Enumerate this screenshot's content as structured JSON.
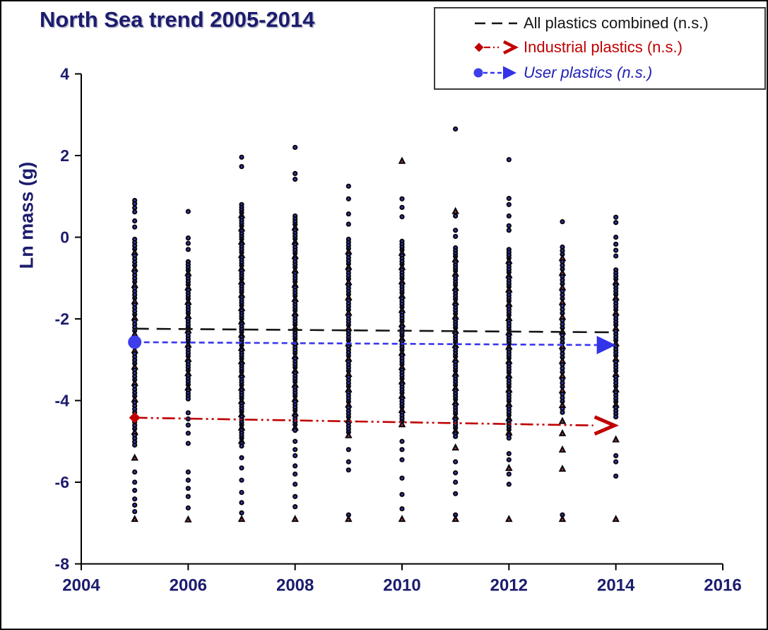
{
  "title": "North Sea trend 2005-2014",
  "legend": {
    "items": [
      {
        "series": "all",
        "label": "All plastics combined (n.s.)",
        "color": "#161616"
      },
      {
        "series": "industrial",
        "label": "Industrial plastics (n.s.)",
        "color": "#c00000"
      },
      {
        "series": "user",
        "label": "User plastics (n.s.)",
        "color": "#2222b4"
      }
    ]
  },
  "colors": {
    "navy_text": "#1c1c6e",
    "black_line": "#151515",
    "red_line": "#c00000",
    "blue_line": "#3636ee",
    "marker_body": "#10102c",
    "marker_blue_dot": "#4444e0",
    "marker_red_dot": "#dd3322"
  },
  "chart_data": {
    "type": "scatter",
    "title": "North Sea trend 2005-2014",
    "xlabel": "",
    "ylabel": "Ln mass (g)",
    "xlim": [
      2004,
      2016
    ],
    "ylim": [
      -8,
      4
    ],
    "x_ticks": [
      "2004",
      "2006",
      "2008",
      "2010",
      "2012",
      "2014",
      "2016"
    ],
    "y_ticks": [
      "4",
      "2",
      "0",
      "-2",
      "-4",
      "-6",
      "-8"
    ],
    "grid": false,
    "legend_position": "top-right",
    "marker_legend": {
      "circle": "user plastics sample (dark circle, blue core)",
      "triangle": "industrial plastics sample (dark triangle, red core)"
    },
    "columns": [
      {
        "year": 2005,
        "upper": [
          [
            0.9,
            "c"
          ],
          [
            0.82,
            "c"
          ],
          [
            0.72,
            "c"
          ],
          [
            0.62,
            "c"
          ],
          [
            0.4,
            "c"
          ],
          [
            0.25,
            "c"
          ]
        ],
        "dense": {
          "from": -0.05,
          "to": -5.05,
          "step": 0.08,
          "triangle_every": 5
        },
        "lower": [
          [
            -5.4,
            "t"
          ],
          [
            -5.75,
            "c"
          ],
          [
            -6.0,
            "c"
          ],
          [
            -6.2,
            "c"
          ],
          [
            -6.41,
            "c"
          ],
          [
            -6.56,
            "c"
          ],
          [
            -6.72,
            "c"
          ],
          [
            -6.9,
            "t"
          ]
        ]
      },
      {
        "year": 2006,
        "upper": [
          [
            0.63,
            "c"
          ],
          [
            -0.02,
            "c"
          ],
          [
            -0.15,
            "c"
          ],
          [
            -0.3,
            "c"
          ]
        ],
        "dense": {
          "from": -0.6,
          "to": -3.95,
          "step": 0.07,
          "triangle_every": 5
        },
        "lower": [
          [
            -4.3,
            "c"
          ],
          [
            -4.45,
            "c"
          ],
          [
            -4.6,
            "c"
          ],
          [
            -4.8,
            "c"
          ],
          [
            -5.05,
            "c"
          ],
          [
            -5.75,
            "c"
          ],
          [
            -5.95,
            "c"
          ],
          [
            -6.15,
            "c"
          ],
          [
            -6.35,
            "c"
          ],
          [
            -6.63,
            "c"
          ],
          [
            -6.91,
            "t"
          ]
        ]
      },
      {
        "year": 2007,
        "upper": [
          [
            1.96,
            "c"
          ],
          [
            1.73,
            "c"
          ]
        ],
        "dense": {
          "from": 0.8,
          "to": -5.1,
          "step": 0.065,
          "triangle_every": 5
        },
        "lower": [
          [
            -5.4,
            "c"
          ],
          [
            -5.65,
            "c"
          ],
          [
            -5.95,
            "c"
          ],
          [
            -6.25,
            "c"
          ],
          [
            -6.5,
            "c"
          ],
          [
            -6.75,
            "c"
          ],
          [
            -6.9,
            "t"
          ]
        ]
      },
      {
        "year": 2008,
        "upper": [
          [
            2.2,
            "c"
          ],
          [
            1.56,
            "c"
          ],
          [
            1.42,
            "c"
          ]
        ],
        "dense": {
          "from": 0.52,
          "to": -4.7,
          "step": 0.07,
          "triangle_every": 5
        },
        "lower": [
          [
            -5.0,
            "c"
          ],
          [
            -5.2,
            "c"
          ],
          [
            -5.35,
            "c"
          ],
          [
            -5.6,
            "c"
          ],
          [
            -5.8,
            "c"
          ],
          [
            -6.05,
            "c"
          ],
          [
            -6.35,
            "c"
          ],
          [
            -6.6,
            "c"
          ],
          [
            -6.9,
            "t"
          ]
        ]
      },
      {
        "year": 2009,
        "upper": [
          [
            1.25,
            "c"
          ],
          [
            0.94,
            "c"
          ],
          [
            0.57,
            "c"
          ],
          [
            0.32,
            "c"
          ]
        ],
        "dense": {
          "from": -0.05,
          "to": -4.85,
          "step": 0.075,
          "triangle_every": 5
        },
        "lower": [
          [
            -5.2,
            "c"
          ],
          [
            -5.5,
            "c"
          ],
          [
            -5.7,
            "c"
          ],
          [
            -6.8,
            "c"
          ],
          [
            -6.9,
            "t"
          ]
        ]
      },
      {
        "year": 2010,
        "upper": [
          [
            1.87,
            "t"
          ],
          [
            0.94,
            "c"
          ],
          [
            0.73,
            "c"
          ],
          [
            0.5,
            "c"
          ]
        ],
        "dense": {
          "from": -0.1,
          "to": -4.6,
          "step": 0.07,
          "triangle_every": 5
        },
        "lower": [
          [
            -5.0,
            "c"
          ],
          [
            -5.2,
            "c"
          ],
          [
            -5.45,
            "c"
          ],
          [
            -5.9,
            "c"
          ],
          [
            -6.3,
            "c"
          ],
          [
            -6.65,
            "c"
          ],
          [
            -6.9,
            "t"
          ]
        ]
      },
      {
        "year": 2011,
        "upper": [
          [
            2.65,
            "c"
          ],
          [
            0.64,
            "t"
          ],
          [
            0.52,
            "c"
          ],
          [
            0.17,
            "c"
          ],
          [
            0.02,
            "c"
          ]
        ],
        "dense": {
          "from": -0.26,
          "to": -4.87,
          "step": 0.07,
          "triangle_every": 5
        },
        "lower": [
          [
            -5.15,
            "t"
          ],
          [
            -5.5,
            "c"
          ],
          [
            -5.77,
            "c"
          ],
          [
            -6.0,
            "c"
          ],
          [
            -6.28,
            "c"
          ],
          [
            -6.8,
            "c"
          ],
          [
            -6.9,
            "t"
          ]
        ]
      },
      {
        "year": 2012,
        "upper": [
          [
            1.9,
            "c"
          ],
          [
            0.95,
            "c"
          ],
          [
            0.8,
            "c"
          ],
          [
            0.52,
            "c"
          ],
          [
            0.28,
            "c"
          ],
          [
            0.17,
            "c"
          ]
        ],
        "dense": {
          "from": -0.3,
          "to": -4.95,
          "step": 0.07,
          "triangle_every": 5
        },
        "lower": [
          [
            -5.3,
            "c"
          ],
          [
            -5.45,
            "c"
          ],
          [
            -5.65,
            "t"
          ],
          [
            -5.8,
            "c"
          ],
          [
            -6.05,
            "c"
          ],
          [
            -6.9,
            "t"
          ]
        ]
      },
      {
        "year": 2013,
        "upper": [
          [
            0.38,
            "c"
          ]
        ],
        "dense": {
          "from": -0.24,
          "to": -4.28,
          "step": 0.09,
          "triangle_every": 4
        },
        "lower": [
          [
            -4.5,
            "t"
          ],
          [
            -4.8,
            "t"
          ],
          [
            -5.2,
            "t"
          ],
          [
            -5.67,
            "t"
          ],
          [
            -6.8,
            "c"
          ],
          [
            -6.9,
            "t"
          ]
        ]
      },
      {
        "year": 2014,
        "upper": [
          [
            0.49,
            "c"
          ],
          [
            0.36,
            "c"
          ],
          [
            0.0,
            "c"
          ],
          [
            -0.17,
            "c"
          ],
          [
            -0.32,
            "c"
          ],
          [
            -0.46,
            "c"
          ]
        ],
        "dense": {
          "from": -0.8,
          "to": -4.4,
          "step": 0.075,
          "triangle_every": 5
        },
        "lower": [
          [
            -4.95,
            "t"
          ],
          [
            -5.35,
            "c"
          ],
          [
            -5.5,
            "c"
          ],
          [
            -5.85,
            "c"
          ],
          [
            -6.9,
            "t"
          ]
        ]
      }
    ],
    "trend_lines": [
      {
        "series": "all",
        "name": "All plastics combined (n.s.)",
        "color": "#151515",
        "style": "long-dash",
        "x": [
          2005,
          2014
        ],
        "y": [
          -2.24,
          -2.33
        ],
        "start_marker": "none",
        "end_marker": "none"
      },
      {
        "series": "industrial",
        "name": "Industrial plastics (n.s.)",
        "color": "#c00000",
        "style": "dash-dot-dot",
        "x": [
          2005,
          2014
        ],
        "y": [
          -4.42,
          -4.61
        ],
        "start_marker": "diamond",
        "end_marker": "open-arrow"
      },
      {
        "series": "user",
        "name": "User plastics (n.s.)",
        "color": "#3636ee",
        "style": "short-dash",
        "x": [
          2005,
          2014
        ],
        "y": [
          -2.57,
          -2.64
        ],
        "start_marker": "circle",
        "end_marker": "filled-arrow"
      }
    ]
  }
}
